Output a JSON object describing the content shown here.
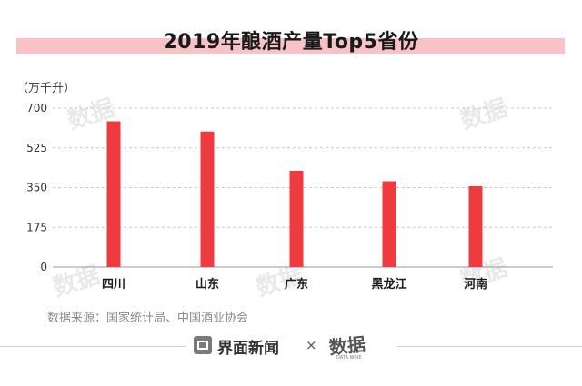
{
  "chart_data": {
    "type": "bar",
    "title": "2019年酿酒产量Top5省份",
    "unit": "（万千升）",
    "categories": [
      "四川",
      "山东",
      "广东",
      "黑龙江",
      "河南"
    ],
    "values": [
      642,
      597,
      424,
      378,
      356
    ],
    "yticks": [
      "0",
      "175",
      "350",
      "525",
      "700"
    ],
    "ylim": [
      0,
      700
    ],
    "grid": true,
    "bar_color": "#ef3b3f"
  },
  "source": "数据来源：国家统计局、中国酒业协会",
  "footer": {
    "brand": "界面新闻",
    "separator": "×"
  }
}
